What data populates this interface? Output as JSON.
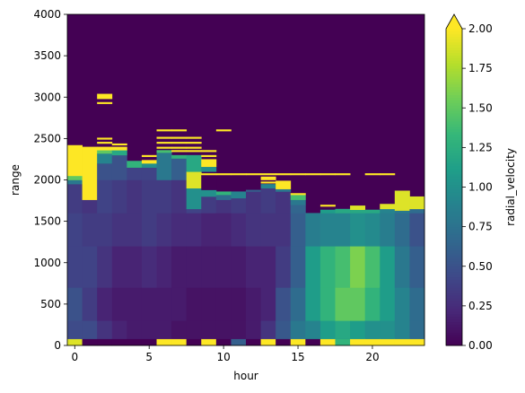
{
  "chart_data": {
    "type": "heatmap",
    "title": "",
    "xlabel": "hour",
    "ylabel": "range",
    "xlim": [
      -0.5,
      23.5
    ],
    "ylim": [
      0,
      4000
    ],
    "x_ticks": [
      0,
      5,
      10,
      15,
      20
    ],
    "y_ticks": [
      0,
      500,
      1000,
      1500,
      2000,
      2500,
      3000,
      3500,
      4000
    ],
    "colorbar": {
      "label": "radial_velocity",
      "min": 0.0,
      "max": 2.0,
      "extend": "max",
      "ticks": [
        "0.00",
        "0.25",
        "0.50",
        "0.75",
        "1.00",
        "1.25",
        "1.50",
        "1.75",
        "2.00"
      ],
      "colormap": "viridis"
    },
    "hours": [
      0,
      1,
      2,
      3,
      4,
      5,
      6,
      7,
      8,
      9,
      10,
      11,
      12,
      13,
      14,
      15,
      16,
      17,
      18,
      19,
      20,
      21,
      22,
      23
    ],
    "columns": [
      {
        "hour": 0,
        "segs": [
          [
            0,
            80,
            1.9
          ],
          [
            80,
            300,
            0.45
          ],
          [
            300,
            700,
            0.5
          ],
          [
            700,
            1200,
            0.4
          ],
          [
            1200,
            1600,
            0.4
          ],
          [
            1600,
            1950,
            0.35
          ],
          [
            1950,
            2000,
            0.8
          ],
          [
            2000,
            2050,
            1.5
          ],
          [
            2050,
            2380,
            2.0
          ],
          [
            2380,
            2420,
            2.0
          ]
        ]
      },
      {
        "hour": 1,
        "segs": [
          [
            0,
            80,
            0.0
          ],
          [
            80,
            300,
            0.45
          ],
          [
            300,
            700,
            0.35
          ],
          [
            700,
            1200,
            0.4
          ],
          [
            1200,
            1600,
            0.35
          ],
          [
            1600,
            1760,
            0.3
          ],
          [
            1760,
            2400,
            2.0
          ]
        ]
      },
      {
        "hour": 2,
        "segs": [
          [
            0,
            80,
            0.0
          ],
          [
            80,
            300,
            0.3
          ],
          [
            300,
            700,
            0.2
          ],
          [
            700,
            1200,
            0.3
          ],
          [
            1200,
            1600,
            0.35
          ],
          [
            1600,
            2000,
            0.4
          ],
          [
            2000,
            2200,
            0.5
          ],
          [
            2200,
            2320,
            0.9
          ],
          [
            2320,
            2360,
            1.5
          ],
          [
            2360,
            2400,
            2.0
          ],
          [
            2440,
            2460,
            2.0
          ],
          [
            2490,
            2510,
            2.0
          ],
          [
            2920,
            2940,
            2.0
          ],
          [
            2980,
            3040,
            2.0
          ]
        ]
      },
      {
        "hour": 3,
        "segs": [
          [
            0,
            80,
            0.0
          ],
          [
            80,
            300,
            0.2
          ],
          [
            300,
            700,
            0.15
          ],
          [
            700,
            1200,
            0.2
          ],
          [
            1200,
            1600,
            0.3
          ],
          [
            1600,
            2000,
            0.35
          ],
          [
            2000,
            2300,
            0.5
          ],
          [
            2300,
            2360,
            1.2
          ],
          [
            2360,
            2400,
            2.0
          ],
          [
            2420,
            2440,
            2.0
          ]
        ]
      },
      {
        "hour": 4,
        "segs": [
          [
            0,
            80,
            0.0
          ],
          [
            80,
            300,
            0.15
          ],
          [
            300,
            700,
            0.15
          ],
          [
            700,
            1200,
            0.2
          ],
          [
            1200,
            1600,
            0.3
          ],
          [
            1600,
            2000,
            0.3
          ],
          [
            2000,
            2150,
            0.4
          ],
          [
            2150,
            2230,
            1.3
          ]
        ]
      },
      {
        "hour": 5,
        "segs": [
          [
            0,
            80,
            0.0
          ],
          [
            80,
            300,
            0.15
          ],
          [
            300,
            700,
            0.15
          ],
          [
            700,
            1200,
            0.25
          ],
          [
            1200,
            1600,
            0.35
          ],
          [
            1600,
            2000,
            0.35
          ],
          [
            2000,
            2150,
            0.4
          ],
          [
            2150,
            2200,
            1.0
          ],
          [
            2200,
            2240,
            2.0
          ],
          [
            2280,
            2300,
            2.0
          ]
        ]
      },
      {
        "hour": 6,
        "segs": [
          [
            0,
            80,
            2.0
          ],
          [
            80,
            300,
            0.15
          ],
          [
            300,
            700,
            0.15
          ],
          [
            700,
            1200,
            0.2
          ],
          [
            1200,
            1600,
            0.3
          ],
          [
            1600,
            2000,
            0.35
          ],
          [
            2000,
            2330,
            0.8
          ],
          [
            2330,
            2360,
            1.4
          ],
          [
            2380,
            2400,
            2.0
          ],
          [
            2440,
            2460,
            2.0
          ],
          [
            2500,
            2520,
            2.0
          ],
          [
            2590,
            2610,
            2.0
          ]
        ]
      },
      {
        "hour": 7,
        "segs": [
          [
            0,
            80,
            2.0
          ],
          [
            80,
            300,
            0.1
          ],
          [
            300,
            700,
            0.15
          ],
          [
            700,
            1200,
            0.15
          ],
          [
            1200,
            1600,
            0.25
          ],
          [
            1600,
            2000,
            0.3
          ],
          [
            2000,
            2260,
            0.6
          ],
          [
            2260,
            2300,
            1.3
          ],
          [
            2340,
            2360,
            2.0
          ],
          [
            2380,
            2400,
            2.0
          ],
          [
            2440,
            2460,
            2.0
          ],
          [
            2500,
            2520,
            2.0
          ],
          [
            2590,
            2610,
            2.0
          ]
        ]
      },
      {
        "hour": 8,
        "segs": [
          [
            0,
            80,
            0.0
          ],
          [
            80,
            300,
            0.1
          ],
          [
            300,
            700,
            0.1
          ],
          [
            700,
            1200,
            0.15
          ],
          [
            1200,
            1600,
            0.25
          ],
          [
            1600,
            1650,
            0.4
          ],
          [
            1650,
            1900,
            1.0
          ],
          [
            1900,
            2100,
            1.9
          ],
          [
            2100,
            2300,
            1.2
          ],
          [
            2340,
            2360,
            2.0
          ],
          [
            2380,
            2400,
            2.0
          ],
          [
            2440,
            2460,
            2.0
          ],
          [
            2500,
            2520,
            2.0
          ]
        ]
      },
      {
        "hour": 9,
        "segs": [
          [
            0,
            80,
            2.0
          ],
          [
            80,
            300,
            0.1
          ],
          [
            300,
            700,
            0.1
          ],
          [
            700,
            1200,
            0.15
          ],
          [
            1200,
            1600,
            0.2
          ],
          [
            1600,
            1800,
            0.35
          ],
          [
            1800,
            1880,
            1.0
          ],
          [
            1880,
            2060,
            0.0
          ],
          [
            2060,
            2080,
            2.0
          ],
          [
            2100,
            2160,
            1.0
          ],
          [
            2160,
            2250,
            2.0
          ],
          [
            2280,
            2300,
            2.0
          ],
          [
            2340,
            2360,
            2.0
          ]
        ]
      },
      {
        "hour": 10,
        "segs": [
          [
            0,
            80,
            0.0
          ],
          [
            80,
            300,
            0.1
          ],
          [
            300,
            700,
            0.1
          ],
          [
            700,
            1200,
            0.15
          ],
          [
            1200,
            1600,
            0.2
          ],
          [
            1600,
            1760,
            0.3
          ],
          [
            1760,
            1820,
            0.7
          ],
          [
            1820,
            1860,
            1.3
          ],
          [
            2060,
            2080,
            2.0
          ],
          [
            2590,
            2610,
            2.0
          ]
        ]
      },
      {
        "hour": 11,
        "segs": [
          [
            0,
            80,
            0.6
          ],
          [
            80,
            300,
            0.1
          ],
          [
            300,
            700,
            0.1
          ],
          [
            700,
            1200,
            0.15
          ],
          [
            1200,
            1600,
            0.25
          ],
          [
            1600,
            1780,
            0.35
          ],
          [
            1780,
            1860,
            0.9
          ],
          [
            2060,
            2080,
            2.0
          ]
        ]
      },
      {
        "hour": 12,
        "segs": [
          [
            0,
            80,
            0.0
          ],
          [
            80,
            300,
            0.15
          ],
          [
            300,
            700,
            0.15
          ],
          [
            700,
            1200,
            0.2
          ],
          [
            1200,
            1600,
            0.3
          ],
          [
            1600,
            1860,
            0.3
          ],
          [
            1860,
            1880,
            0.6
          ],
          [
            2060,
            2080,
            2.0
          ]
        ]
      },
      {
        "hour": 13,
        "segs": [
          [
            0,
            80,
            2.0
          ],
          [
            80,
            300,
            0.3
          ],
          [
            300,
            700,
            0.2
          ],
          [
            700,
            1200,
            0.2
          ],
          [
            1200,
            1600,
            0.3
          ],
          [
            1600,
            1900,
            0.35
          ],
          [
            1900,
            1950,
            0.9
          ],
          [
            1960,
            1980,
            2.0
          ],
          [
            2000,
            2040,
            2.0
          ],
          [
            2060,
            2080,
            2.0
          ]
        ]
      },
      {
        "hour": 14,
        "segs": [
          [
            0,
            80,
            0.0
          ],
          [
            80,
            300,
            0.55
          ],
          [
            300,
            700,
            0.5
          ],
          [
            700,
            1200,
            0.35
          ],
          [
            1200,
            1600,
            0.3
          ],
          [
            1600,
            1860,
            0.3
          ],
          [
            1860,
            1890,
            0.8
          ],
          [
            1890,
            1990,
            2.0
          ],
          [
            2060,
            2080,
            2.0
          ]
        ]
      },
      {
        "hour": 15,
        "segs": [
          [
            0,
            80,
            2.0
          ],
          [
            80,
            300,
            0.8
          ],
          [
            300,
            700,
            0.7
          ],
          [
            700,
            1200,
            0.6
          ],
          [
            1200,
            1600,
            0.6
          ],
          [
            1600,
            1700,
            0.65
          ],
          [
            1700,
            1760,
            0.8
          ],
          [
            1760,
            1820,
            1.4
          ],
          [
            1820,
            1840,
            2.0
          ],
          [
            2060,
            2080,
            2.0
          ]
        ]
      },
      {
        "hour": 16,
        "segs": [
          [
            0,
            80,
            0.0
          ],
          [
            80,
            300,
            0.9
          ],
          [
            300,
            700,
            1.1
          ],
          [
            700,
            1200,
            1.1
          ],
          [
            1200,
            1600,
            0.85
          ],
          [
            2060,
            2080,
            2.0
          ]
        ]
      },
      {
        "hour": 17,
        "segs": [
          [
            0,
            80,
            2.0
          ],
          [
            80,
            300,
            1.1
          ],
          [
            300,
            700,
            1.3
          ],
          [
            700,
            1200,
            1.3
          ],
          [
            1200,
            1600,
            0.9
          ],
          [
            1600,
            1640,
            1.1
          ],
          [
            1680,
            1700,
            2.0
          ],
          [
            2060,
            2080,
            2.0
          ]
        ]
      },
      {
        "hour": 18,
        "segs": [
          [
            0,
            80,
            1.3
          ],
          [
            80,
            300,
            1.2
          ],
          [
            300,
            700,
            1.5
          ],
          [
            700,
            1200,
            1.4
          ],
          [
            1200,
            1600,
            0.9
          ],
          [
            1600,
            1650,
            1.2
          ],
          [
            2060,
            2080,
            2.0
          ]
        ]
      },
      {
        "hour": 19,
        "segs": [
          [
            0,
            80,
            2.0
          ],
          [
            80,
            300,
            1.1
          ],
          [
            300,
            700,
            1.5
          ],
          [
            700,
            1200,
            1.6
          ],
          [
            1200,
            1600,
            1.0
          ],
          [
            1600,
            1640,
            1.2
          ],
          [
            1640,
            1690,
            1.9
          ]
        ]
      },
      {
        "hour": 20,
        "segs": [
          [
            0,
            80,
            2.0
          ],
          [
            80,
            300,
            1.0
          ],
          [
            300,
            700,
            1.3
          ],
          [
            700,
            1200,
            1.4
          ],
          [
            1200,
            1600,
            0.95
          ],
          [
            1600,
            1640,
            1.2
          ],
          [
            2060,
            2080,
            2.0
          ]
        ]
      },
      {
        "hour": 21,
        "segs": [
          [
            0,
            80,
            2.0
          ],
          [
            80,
            300,
            1.0
          ],
          [
            300,
            700,
            1.1
          ],
          [
            700,
            1200,
            1.1
          ],
          [
            1200,
            1600,
            0.85
          ],
          [
            1600,
            1650,
            0.9
          ],
          [
            1650,
            1710,
            1.9
          ],
          [
            2060,
            2080,
            2.0
          ]
        ]
      },
      {
        "hour": 22,
        "segs": [
          [
            0,
            80,
            2.0
          ],
          [
            80,
            300,
            0.9
          ],
          [
            300,
            700,
            0.9
          ],
          [
            700,
            1200,
            0.8
          ],
          [
            1200,
            1600,
            0.7
          ],
          [
            1600,
            1630,
            0.8
          ],
          [
            1630,
            1870,
            1.9
          ]
        ]
      },
      {
        "hour": 23,
        "segs": [
          [
            0,
            80,
            2.0
          ],
          [
            80,
            300,
            0.7
          ],
          [
            300,
            700,
            0.7
          ],
          [
            700,
            1200,
            0.6
          ],
          [
            1200,
            1600,
            0.5
          ],
          [
            1600,
            1650,
            0.7
          ],
          [
            1650,
            1800,
            1.9
          ]
        ]
      }
    ]
  }
}
